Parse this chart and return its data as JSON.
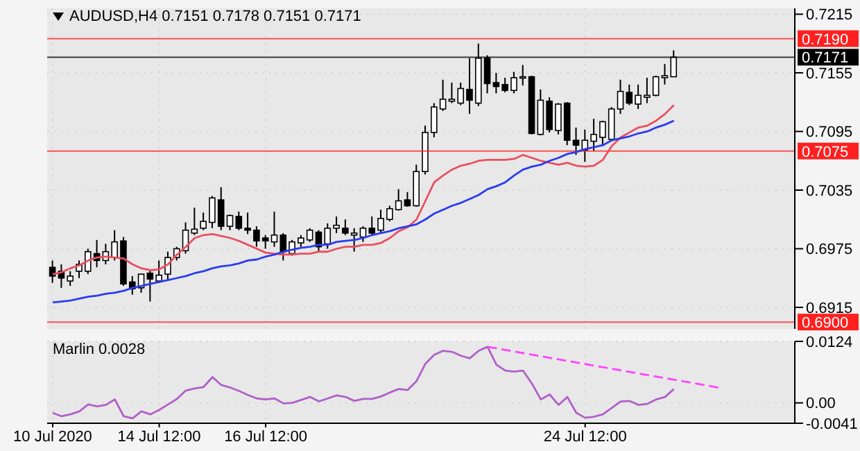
{
  "chart_data": [
    {
      "type": "candlestick",
      "title": "AUDUSD,H4  0.7151 0.7178 0.7151 0.7171",
      "categories": [
        null,
        null,
        null,
        null,
        null,
        null,
        null,
        null,
        null,
        null,
        null,
        null,
        null,
        null,
        null,
        null,
        null,
        null,
        null,
        null,
        null,
        null,
        null,
        null,
        null,
        null,
        null,
        null,
        null,
        null,
        null,
        null,
        null,
        null,
        null,
        null,
        null,
        null,
        null,
        null,
        null,
        null,
        null,
        null,
        null,
        null,
        null,
        null,
        null,
        null,
        null,
        null,
        null,
        null,
        null,
        null,
        null,
        null,
        null,
        null,
        null,
        null,
        null,
        null,
        null,
        null,
        null,
        null,
        null,
        null,
        null,
        null,
        null,
        null,
        null,
        null,
        null,
        null,
        null,
        null,
        null,
        null,
        null,
        null
      ],
      "ohlc": [
        [
          0.6956,
          0.6963,
          0.694,
          0.6947
        ],
        [
          0.6952,
          0.6959,
          0.6935,
          0.6945
        ],
        [
          0.6942,
          0.6952,
          0.6937,
          0.6947
        ],
        [
          0.6952,
          0.6963,
          0.6945,
          0.6959
        ],
        [
          0.6952,
          0.6975,
          0.6949,
          0.6972
        ],
        [
          0.697,
          0.6984,
          0.6956,
          0.6963
        ],
        [
          0.6963,
          0.698,
          0.6959,
          0.6972
        ],
        [
          0.6966,
          0.6994,
          0.6963,
          0.6982
        ],
        [
          0.6983,
          0.6987,
          0.6937,
          0.6939
        ],
        [
          0.6941,
          0.6947,
          0.6928,
          0.6934
        ],
        [
          0.6935,
          0.6949,
          0.693,
          0.6949
        ],
        [
          0.695,
          0.6954,
          0.6921,
          0.6944
        ],
        [
          0.6942,
          0.6963,
          0.694,
          0.6948
        ],
        [
          0.6949,
          0.6972,
          0.6942,
          0.6966
        ],
        [
          0.6966,
          0.6977,
          0.6963,
          0.6975
        ],
        [
          0.6973,
          0.7002,
          0.697,
          0.6994
        ],
        [
          0.6991,
          0.7017,
          0.6989,
          0.6995
        ],
        [
          0.6996,
          0.7012,
          0.6994,
          0.7003
        ],
        [
          0.7002,
          0.7029,
          0.6996,
          0.7027
        ],
        [
          0.7025,
          0.7038,
          0.6994,
          0.6998
        ],
        [
          0.6998,
          0.701,
          0.6994,
          0.7009
        ],
        [
          0.7008,
          0.7013,
          0.6994,
          0.6996
        ],
        [
          0.6996,
          0.7012,
          0.699,
          0.6994
        ],
        [
          0.6994,
          0.6998,
          0.6977,
          0.6983
        ],
        [
          0.6986,
          0.6989,
          0.6975,
          0.6983
        ],
        [
          0.6982,
          0.7013,
          0.6977,
          0.6989
        ],
        [
          0.6989,
          0.6991,
          0.6963,
          0.6972
        ],
        [
          0.697,
          0.6984,
          0.6968,
          0.6982
        ],
        [
          0.6981,
          0.6989,
          0.6977,
          0.6986
        ],
        [
          0.6984,
          0.6996,
          0.6982,
          0.6994
        ],
        [
          0.6992,
          0.6994,
          0.6972,
          0.6977
        ],
        [
          0.698,
          0.7001,
          0.6975,
          0.6996
        ],
        [
          0.6996,
          0.7008,
          0.6991,
          0.6999
        ],
        [
          0.6996,
          0.7005,
          0.6989,
          0.6991
        ],
        [
          0.6989,
          0.6996,
          0.6972,
          0.6991
        ],
        [
          0.6987,
          0.6998,
          0.6982,
          0.6996
        ],
        [
          0.6996,
          0.7008,
          0.6989,
          0.6991
        ],
        [
          0.6994,
          0.7015,
          0.6991,
          0.7006
        ],
        [
          0.7005,
          0.7019,
          0.7003,
          0.7016
        ],
        [
          0.7015,
          0.7036,
          0.7014,
          0.7024
        ],
        [
          0.7025,
          0.7033,
          0.7018,
          0.7019
        ],
        [
          0.7019,
          0.7061,
          0.7018,
          0.7054
        ],
        [
          0.7054,
          0.7101,
          0.7051,
          0.7094
        ],
        [
          0.7094,
          0.7124,
          0.7089,
          0.712
        ],
        [
          0.7118,
          0.7148,
          0.7116,
          0.7128
        ],
        [
          0.7126,
          0.7145,
          0.7124,
          0.7128
        ],
        [
          0.7124,
          0.7145,
          0.7122,
          0.7139
        ],
        [
          0.7138,
          0.717,
          0.7113,
          0.7127
        ],
        [
          0.7124,
          0.7185,
          0.7121,
          0.717
        ],
        [
          0.717,
          0.7173,
          0.7134,
          0.7144
        ],
        [
          0.7145,
          0.7155,
          0.7134,
          0.7141
        ],
        [
          0.7143,
          0.715,
          0.7135,
          0.7137
        ],
        [
          0.7137,
          0.7156,
          0.7134,
          0.715
        ],
        [
          0.715,
          0.7163,
          0.7142,
          0.7151
        ],
        [
          0.7151,
          0.7152,
          0.7092,
          0.7093
        ],
        [
          0.7092,
          0.7138,
          0.7091,
          0.7127
        ],
        [
          0.7126,
          0.713,
          0.7094,
          0.7097
        ],
        [
          0.7096,
          0.7124,
          0.7092,
          0.7123
        ],
        [
          0.7124,
          0.7125,
          0.7081,
          0.7086
        ],
        [
          0.7086,
          0.7099,
          0.7071,
          0.7081
        ],
        [
          0.7076,
          0.7097,
          0.7064,
          0.7086
        ],
        [
          0.7085,
          0.7108,
          0.7075,
          0.7092
        ],
        [
          0.7089,
          0.7106,
          0.708,
          0.7105
        ],
        [
          0.7087,
          0.712,
          0.7085,
          0.7118
        ],
        [
          0.7118,
          0.7148,
          0.7113,
          0.7136
        ],
        [
          0.7135,
          0.7143,
          0.7122,
          0.7124
        ],
        [
          0.7123,
          0.7143,
          0.7118,
          0.7132
        ],
        [
          0.713,
          0.715,
          0.7124,
          0.7132
        ],
        [
          0.7132,
          0.7152,
          0.7131,
          0.7151
        ],
        [
          0.715,
          0.7164,
          0.7143,
          0.7152
        ],
        [
          0.7151,
          0.7178,
          0.7151,
          0.7171
        ],
        null,
        null,
        null,
        null,
        null,
        null,
        null,
        null,
        null,
        null,
        null,
        null,
        null
      ],
      "series": [
        {
          "type": "line",
          "color": "#e8505f",
          "values": [
            0.6949,
            0.6951,
            0.6955,
            0.6958,
            0.6963,
            0.6966,
            0.6967,
            0.6966,
            0.6965,
            0.6959,
            0.6955,
            0.6953,
            0.6954,
            0.6959,
            0.6969,
            0.6977,
            0.6986,
            0.6989,
            0.699,
            0.6988,
            0.6986,
            0.6983,
            0.6979,
            0.6975,
            0.6971,
            0.697,
            0.6969,
            0.6969,
            0.697,
            0.697,
            0.6972,
            0.6972,
            0.6975,
            0.6977,
            0.6977,
            0.6979,
            0.6979,
            0.6981,
            0.6986,
            0.6993,
            0.6997,
            0.7005,
            0.7024,
            0.7043,
            0.705,
            0.7056,
            0.706,
            0.7062,
            0.7065,
            0.7066,
            0.7066,
            0.7066,
            0.7067,
            0.7071,
            0.7068,
            0.7065,
            0.7063,
            0.7061,
            0.7063,
            0.706,
            0.7059,
            0.706,
            0.7066,
            0.708,
            0.7089,
            0.7094,
            0.7099,
            0.7101,
            0.7106,
            0.7113,
            0.7122,
            null,
            null,
            null,
            null,
            null,
            null,
            null,
            null,
            null,
            null,
            null,
            null,
            null
          ]
        },
        {
          "type": "line",
          "color": "#2a3cf0",
          "values": [
            0.692,
            0.6921,
            0.6922,
            0.6924,
            0.6926,
            0.6927,
            0.6929,
            0.693,
            0.6932,
            0.6935,
            0.6937,
            0.6939,
            0.6941,
            0.6943,
            0.6945,
            0.6947,
            0.695,
            0.6952,
            0.6955,
            0.6957,
            0.6958,
            0.696,
            0.6963,
            0.6964,
            0.6967,
            0.6969,
            0.6972,
            0.6974,
            0.6976,
            0.6977,
            0.6979,
            0.6979,
            0.6982,
            0.6983,
            0.6984,
            0.6986,
            0.6989,
            0.6991,
            0.6993,
            0.6996,
            0.6998,
            0.7,
            0.7005,
            0.7011,
            0.7015,
            0.7019,
            0.7022,
            0.7026,
            0.703,
            0.7036,
            0.7039,
            0.7043,
            0.705,
            0.7056,
            0.7059,
            0.7061,
            0.7065,
            0.7068,
            0.7072,
            0.7074,
            0.7077,
            0.7079,
            0.7081,
            0.7086,
            0.7088,
            0.709,
            0.7093,
            0.7095,
            0.7099,
            0.7102,
            0.7106,
            null,
            null,
            null,
            null,
            null,
            null,
            null,
            null,
            null,
            null,
            null,
            null,
            null
          ]
        }
      ],
      "ylim": [
        0.6893,
        0.7221
      ],
      "yticks": [
        0.6915,
        0.6975,
        0.7035,
        0.7095,
        0.7155,
        0.7215
      ],
      "ref_lines": [
        {
          "axis": "y",
          "value": 0.719,
          "label": "0.7190",
          "color": "#ff2020"
        },
        {
          "axis": "y",
          "value": 0.7171,
          "label": "0.7171",
          "color": "#000000"
        },
        {
          "axis": "y",
          "value": 0.7075,
          "label": "0.7075",
          "color": "#ff2020"
        },
        {
          "axis": "y",
          "value": 0.69,
          "label": "0.6900",
          "color": "#ff2020"
        }
      ],
      "grid": true,
      "tick_labels": "y"
    },
    {
      "type": "line",
      "title": "Marlin 0.0028",
      "categories": [
        "10 Jul 2020",
        null,
        null,
        null,
        null,
        null,
        null,
        null,
        null,
        null,
        null,
        null,
        "14 Jul 12:00",
        null,
        null,
        null,
        null,
        null,
        null,
        null,
        null,
        null,
        null,
        null,
        "16 Jul 12:00",
        null,
        null,
        null,
        null,
        null,
        null,
        null,
        null,
        null,
        null,
        null,
        null,
        null,
        null,
        null,
        null,
        null,
        null,
        null,
        null,
        null,
        null,
        null,
        null,
        null,
        null,
        null,
        null,
        null,
        null,
        null,
        null,
        null,
        null,
        null,
        "24 Jul 12:00",
        null,
        null,
        null,
        null,
        null,
        null,
        null,
        null,
        null,
        null,
        null,
        null,
        null,
        null,
        null,
        null,
        null,
        null,
        null,
        null,
        null,
        null,
        null
      ],
      "series": [
        {
          "color": "#b060c8",
          "values": [
            -0.002,
            -0.0027,
            -0.0023,
            -0.0017,
            -0.0003,
            -0.0007,
            -0.0004,
            0.0007,
            -0.0027,
            -0.0031,
            -0.0017,
            -0.0023,
            -0.0014,
            -0.0003,
            0.0008,
            0.0025,
            0.0029,
            0.0032,
            0.0052,
            0.0036,
            0.0031,
            0.0024,
            0.0016,
            0.0009,
            0.0007,
            0.0009,
            -0.0001,
            0.0,
            0.0006,
            0.0012,
            0.0003,
            0.0009,
            0.0015,
            0.0012,
            0.0004,
            0.0008,
            0.0008,
            0.0013,
            0.0021,
            0.0028,
            0.0026,
            0.0044,
            0.0079,
            0.0097,
            0.0105,
            0.0103,
            0.0095,
            0.009,
            0.0105,
            0.0113,
            0.0077,
            0.0065,
            0.0063,
            0.0065,
            0.0039,
            0.0007,
            0.0017,
            -0.0004,
            0.0012,
            -0.002,
            -0.003,
            -0.0028,
            -0.0023,
            -0.001,
            0.0003,
            0.0004,
            -0.0004,
            -0.0002,
            0.0007,
            0.0012,
            0.0028,
            null,
            null,
            null,
            null,
            null,
            null,
            null,
            null,
            null,
            null,
            null,
            null,
            null
          ]
        },
        {
          "color": "#ff44ff",
          "line_style": "dashed",
          "values": [
            null,
            null,
            null,
            null,
            null,
            null,
            null,
            null,
            null,
            null,
            null,
            null,
            null,
            null,
            null,
            null,
            null,
            null,
            null,
            null,
            null,
            null,
            null,
            null,
            null,
            null,
            null,
            null,
            null,
            null,
            null,
            null,
            null,
            null,
            null,
            null,
            null,
            null,
            null,
            null,
            null,
            null,
            null,
            null,
            null,
            null,
            null,
            null,
            null,
            0.0113,
            null,
            null,
            null,
            null,
            null,
            null,
            null,
            null,
            null,
            null,
            null,
            null,
            null,
            null,
            null,
            null,
            null,
            null,
            null,
            null,
            null,
            null,
            null,
            null,
            null,
            0.0031,
            null,
            null,
            null,
            null,
            null,
            null,
            null,
            null
          ]
        }
      ],
      "ylim": [
        -0.0041,
        0.0124
      ],
      "yticks": [
        -0.0041,
        {
          "value": 0,
          "label": "0.00"
        },
        0.0124
      ],
      "grid": true
    }
  ]
}
